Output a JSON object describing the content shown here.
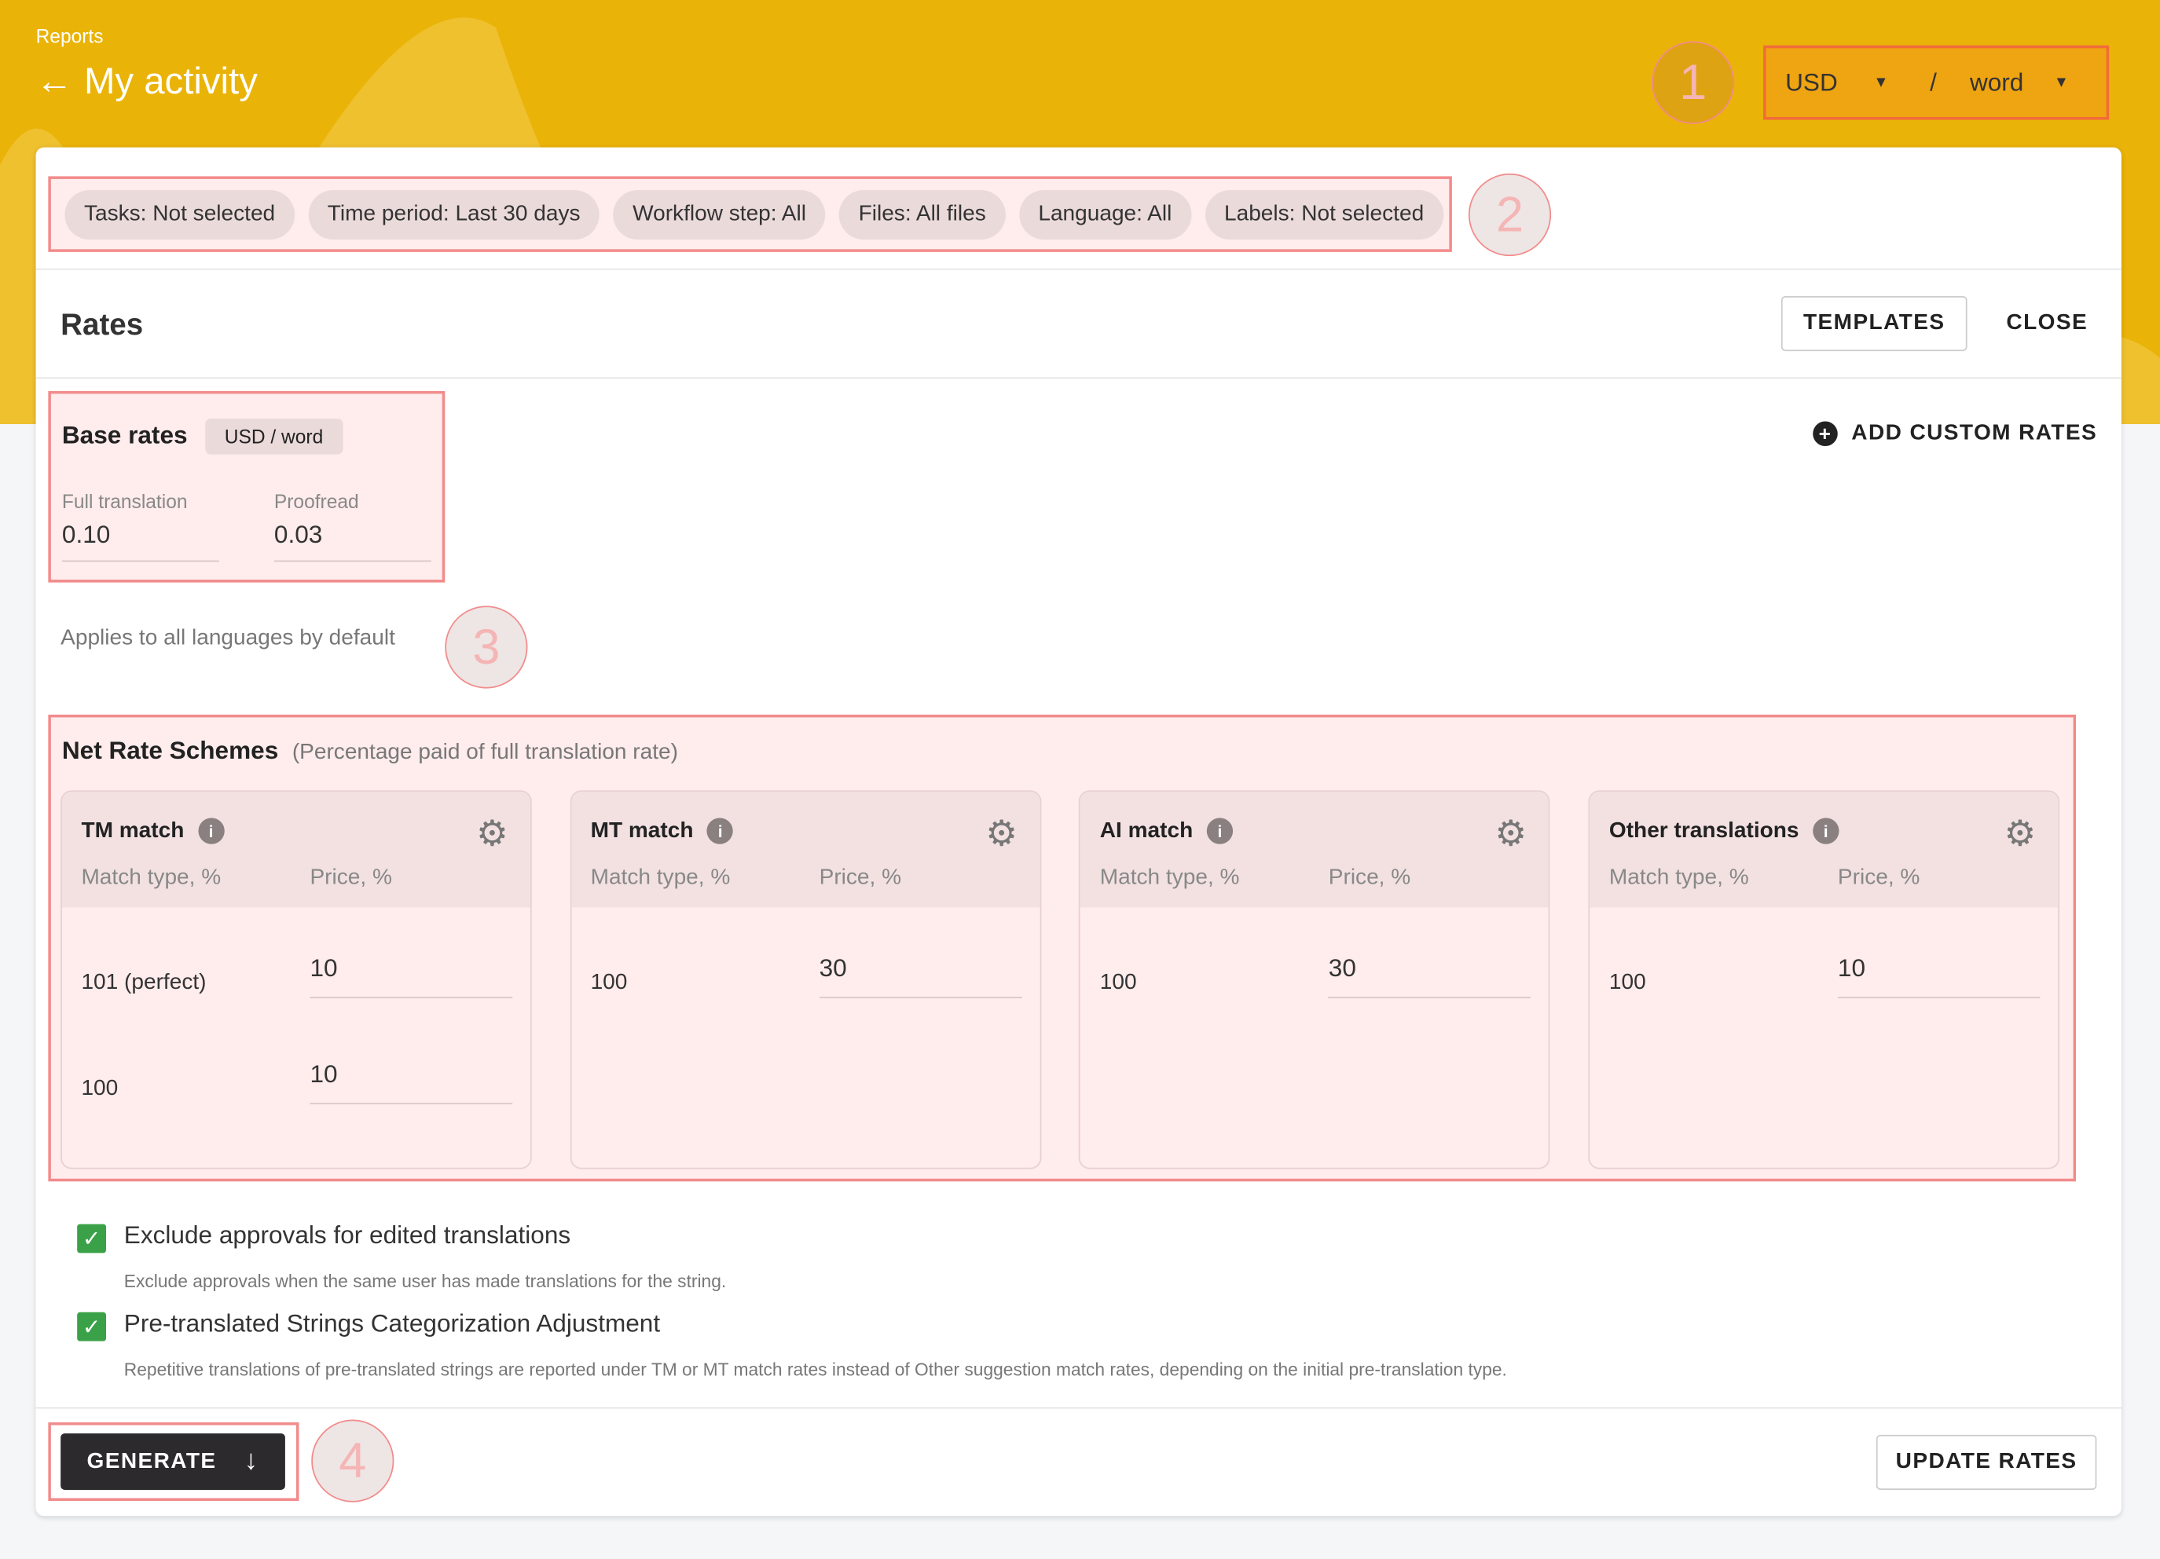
{
  "header": {
    "breadcrumb": "Reports",
    "title": "My activity",
    "currency": "USD",
    "unit_separator": "/",
    "unit": "word"
  },
  "filters": [
    "Tasks: Not selected",
    "Time period: Last 30 days",
    "Workflow step: All",
    "Files: All files",
    "Language: All",
    "Labels: Not selected"
  ],
  "rates": {
    "title": "Rates",
    "templates_label": "TEMPLATES",
    "close_label": "CLOSE",
    "add_custom_label": "ADD CUSTOM RATES"
  },
  "base_rates": {
    "title": "Base rates",
    "unit_badge": "USD / word",
    "full_label": "Full translation",
    "full_value": "0.10",
    "proof_label": "Proofread",
    "proof_value": "0.03",
    "note": "Applies to all languages by default"
  },
  "net": {
    "title": "Net Rate Schemes",
    "subtitle": "(Percentage paid of full translation rate)",
    "col_match": "Match type, %",
    "col_price": "Price, %",
    "schemes": [
      {
        "name": "TM match",
        "rows": [
          {
            "match": "101 (perfect)",
            "price": "10"
          },
          {
            "match": "100",
            "price": "10"
          }
        ]
      },
      {
        "name": "MT match",
        "rows": [
          {
            "match": "100",
            "price": "30"
          }
        ]
      },
      {
        "name": "AI match",
        "rows": [
          {
            "match": "100",
            "price": "30"
          }
        ]
      },
      {
        "name": "Other translations",
        "rows": [
          {
            "match": "100",
            "price": "10"
          }
        ]
      }
    ]
  },
  "options": [
    {
      "title": "Exclude approvals for edited translations",
      "desc": "Exclude approvals when the same user has made translations for the string.",
      "checked": true
    },
    {
      "title": "Pre-translated Strings Categorization Adjustment",
      "desc": "Repetitive translations of pre-translated strings are reported under TM or MT match rates instead of Other suggestion match rates, depending on the initial pre-translation type.",
      "checked": true
    }
  ],
  "footer": {
    "generate_label": "GENERATE",
    "update_label": "UPDATE RATES"
  },
  "annotations": [
    "1",
    "2",
    "3",
    "4"
  ],
  "colors": {
    "header": "#eab308",
    "highlight": "#f28b8b",
    "check": "#3aa148",
    "generate": "#2d2a2e"
  }
}
